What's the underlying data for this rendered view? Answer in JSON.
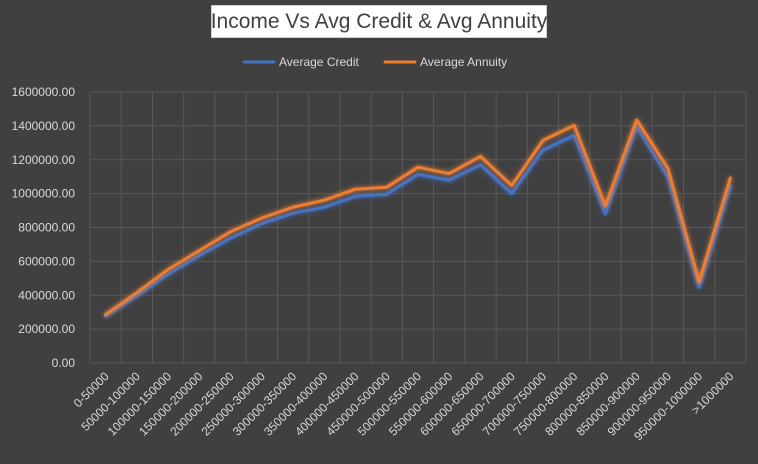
{
  "chart_data": {
    "type": "line",
    "title": "Income Vs Avg Credit & Avg Annuity",
    "xlabel": "",
    "ylabel": "",
    "ylim": [
      0,
      1600000
    ],
    "y_ticks": [
      "0.00",
      "200000.00",
      "400000.00",
      "600000.00",
      "800000.00",
      "1000000.00",
      "1200000.00",
      "1400000.00",
      "1600000.00"
    ],
    "categories": [
      "0-50000",
      "50000-100000",
      "100000-150000",
      "150000-200000",
      "200000-250000",
      "250000-300000",
      "300000-350000",
      "350000-400000",
      "400000-450000",
      "450000-500000",
      "500000-550000",
      "550000-600000",
      "600000-650000",
      "650000-700000",
      "700000-750000",
      "750000-800000",
      "800000-850000",
      "850000-900000",
      "900000-950000",
      "950000-1000000",
      ">1000000"
    ],
    "series": [
      {
        "name": "Average Credit",
        "color": "#4472c4",
        "values": [
          276000,
          396000,
          524000,
          634000,
          737000,
          823000,
          884000,
          920000,
          984000,
          996000,
          1113000,
          1080000,
          1170000,
          1000000,
          1257000,
          1344000,
          881000,
          1395000,
          1099000,
          447000,
          1045000
        ]
      },
      {
        "name": "Average Annuity",
        "color": "#ed7d31",
        "values": [
          286000,
          415000,
          552000,
          663000,
          775000,
          856000,
          920000,
          961000,
          1026000,
          1038000,
          1156000,
          1118000,
          1220000,
          1048000,
          1314000,
          1403000,
          927000,
          1435000,
          1149000,
          479000,
          1092000
        ]
      }
    ],
    "grid": true,
    "legend_position": "top"
  }
}
